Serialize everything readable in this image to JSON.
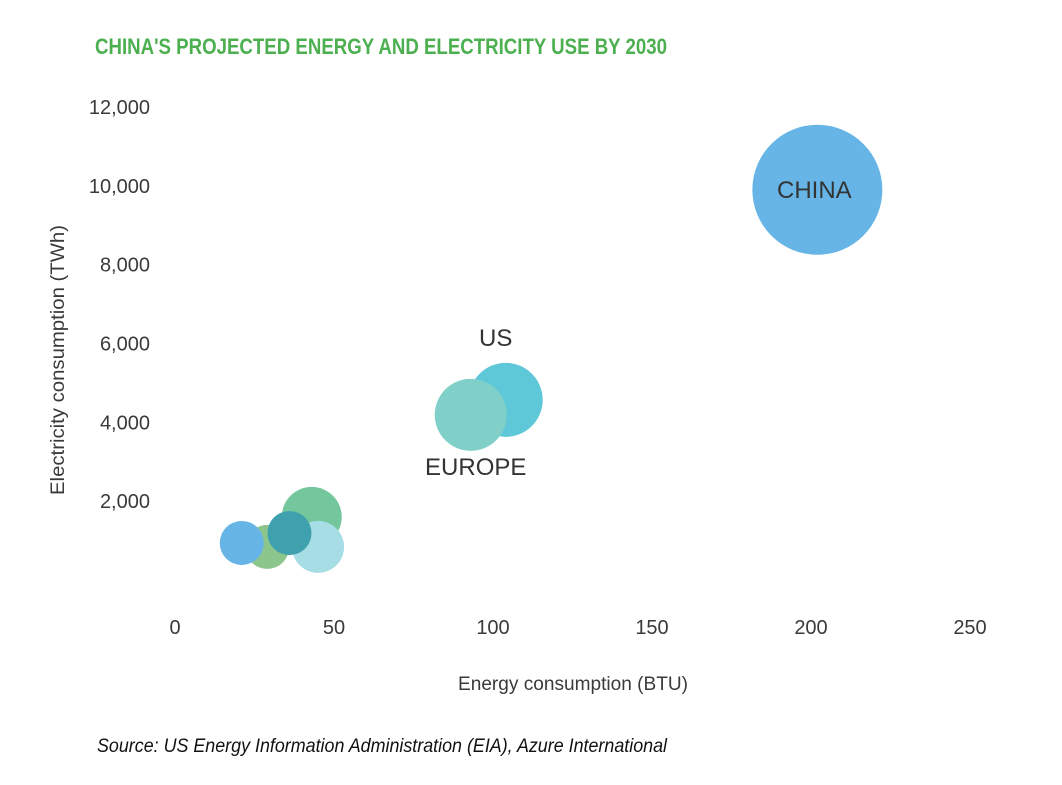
{
  "chart_data": {
    "type": "bubble",
    "title": "CHINA'S PROJECTED ENERGY AND ELECTRICITY USE BY 2030",
    "xlabel": "Energy consumption (BTU)",
    "ylabel": "Electricity consumption (TWh)",
    "xlim": [
      0,
      250
    ],
    "ylim": [
      0,
      12000
    ],
    "x_ticks": [
      "0",
      "50",
      "100",
      "150",
      "200",
      "250"
    ],
    "y_ticks": [
      "2,000",
      "4,000",
      "6,000",
      "8,000",
      "10,000",
      "12,000"
    ],
    "grid": false,
    "source": "Source: US Energy Information Administration (EIA), Azure International",
    "points": [
      {
        "label": "CHINA",
        "x": 202,
        "y": 9900,
        "size": 65,
        "color": "#66b5e6"
      },
      {
        "label": "US",
        "x": 104,
        "y": 4570,
        "size": 37,
        "color": "#5ec8d8"
      },
      {
        "label": "EUROPE",
        "x": 93,
        "y": 4190,
        "size": 36,
        "color": "#80cfc8"
      },
      {
        "label": "",
        "x": 43,
        "y": 1600,
        "size": 30,
        "color": "#74c69d"
      },
      {
        "label": "",
        "x": 45,
        "y": 840,
        "size": 26,
        "color": "#a7dde4"
      },
      {
        "label": "",
        "x": 29,
        "y": 840,
        "size": 22,
        "color": "#8dc68c"
      },
      {
        "label": "",
        "x": 36,
        "y": 1190,
        "size": 22,
        "color": "#3fa1ae"
      },
      {
        "label": "",
        "x": 21,
        "y": 940,
        "size": 22,
        "color": "#66b5e6"
      }
    ]
  }
}
